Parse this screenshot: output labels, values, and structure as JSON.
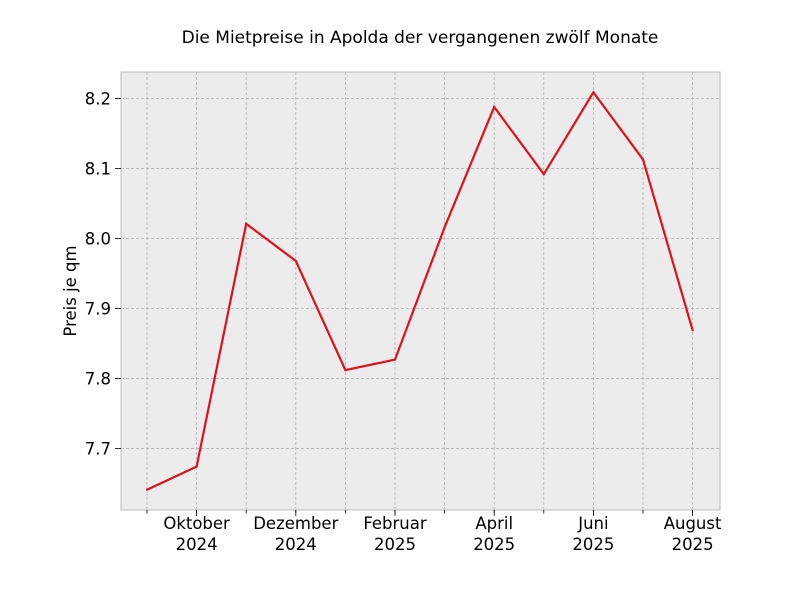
{
  "chart_data": {
    "type": "line",
    "title": "Die Mietpreise in Apolda der vergangenen zwölf Monate",
    "xlabel": "",
    "ylabel": "Preis je qm",
    "x": [
      "2024-09",
      "2024-10",
      "2024-11",
      "2024-12",
      "2025-01",
      "2025-02",
      "2025-03",
      "2025-04",
      "2025-05",
      "2025-06",
      "2025-07",
      "2025-08"
    ],
    "x_tick_labels": [
      {
        "x": "2024-10",
        "line1": "Oktober",
        "line2": "2024"
      },
      {
        "x": "2024-12",
        "line1": "Dezember",
        "line2": "2024"
      },
      {
        "x": "2025-02",
        "line1": "Februar",
        "line2": "2025"
      },
      {
        "x": "2025-04",
        "line1": "April",
        "line2": "2025"
      },
      {
        "x": "2025-06",
        "line1": "Juni",
        "line2": "2025"
      },
      {
        "x": "2025-08",
        "line1": "August",
        "line2": "2025"
      }
    ],
    "series": [
      {
        "values": [
          7.641,
          7.674,
          8.021,
          7.968,
          7.812,
          7.827,
          8.016,
          8.188,
          8.092,
          8.209,
          8.113,
          7.869
        ],
        "color": "#e0101c"
      }
    ],
    "ylim": [
      7.612,
      8.238
    ],
    "y_ticks": [
      7.7,
      7.8,
      7.9,
      8.0,
      8.1,
      8.2
    ],
    "grid": true,
    "background": "#ececec"
  }
}
